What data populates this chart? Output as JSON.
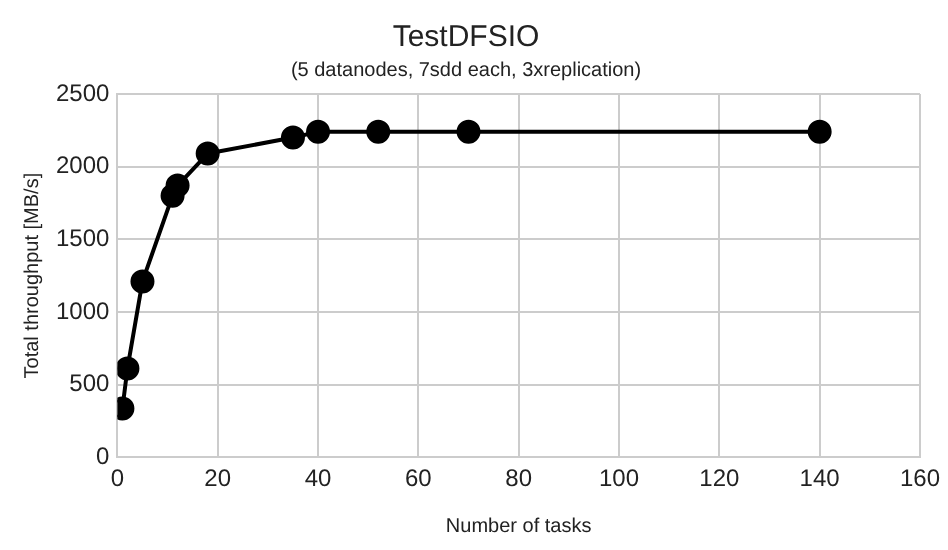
{
  "chart_data": {
    "type": "line",
    "title": "TestDFSIO",
    "subtitle": "(5 datanodes, 7sdd each, 3xreplication)",
    "xlabel": "Number of tasks",
    "ylabel": "Total throughput [MB/s]",
    "x": [
      1,
      2,
      5,
      11,
      12,
      18,
      35,
      40,
      52,
      70,
      140
    ],
    "series": [
      {
        "color": "#000000",
        "values": [
          335,
          610,
          1210,
          1800,
          1870,
          2090,
          2200,
          2240,
          2240,
          2240,
          2240
        ]
      }
    ],
    "xlim": [
      0,
      160
    ],
    "xticks": [
      0,
      20,
      40,
      60,
      80,
      100,
      120,
      140,
      160
    ],
    "ylim": [
      0,
      2500
    ],
    "yticks": [
      0,
      500,
      1000,
      1500,
      2000,
      2500
    ],
    "grid": true,
    "legend": false,
    "marker": "circle",
    "line_style": "solid"
  }
}
